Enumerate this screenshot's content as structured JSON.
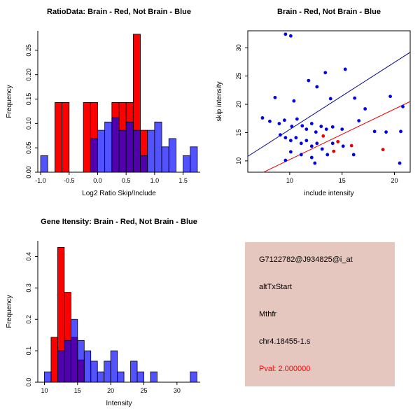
{
  "chart_data": [
    {
      "type": "bar",
      "title": "RatioData: Brain - Red, Not Brain - Blue",
      "xlabel": "Log2 Ratio Skip/Include",
      "ylabel": "Frequency",
      "xlim": [
        -1.05,
        1.8
      ],
      "ylim": [
        0,
        0.29
      ],
      "xticks": [
        {
          "v": -1.0,
          "label": "-1.0"
        },
        {
          "v": -0.5,
          "label": "-0.5"
        },
        {
          "v": 0.0,
          "label": "0.0"
        },
        {
          "v": 0.5,
          "label": "0.5"
        },
        {
          "v": 1.0,
          "label": "1.0"
        },
        {
          "v": 1.5,
          "label": "1.5"
        }
      ],
      "yticks": [
        {
          "v": 0.0,
          "label": "0.00"
        },
        {
          "v": 0.05,
          "label": "0.05"
        },
        {
          "v": 0.1,
          "label": "0.10"
        },
        {
          "v": 0.15,
          "label": "0.15"
        },
        {
          "v": 0.2,
          "label": "0.20"
        },
        {
          "v": 0.25,
          "label": "0.25"
        }
      ],
      "bin_width": 0.125,
      "series": [
        {
          "name": "Brain",
          "color": "#FF0000",
          "bins": [
            [
              -0.75,
              0.143
            ],
            [
              -0.625,
              0.143
            ],
            [
              -0.25,
              0.143
            ],
            [
              -0.125,
              0.143
            ],
            [
              0.25,
              0.143
            ],
            [
              0.375,
              0.143
            ],
            [
              0.5,
              0.143
            ],
            [
              0.625,
              0.283
            ],
            [
              0.75,
              0.086
            ]
          ]
        },
        {
          "name": "Not Brain",
          "color": "#0000FF",
          "bins": [
            [
              -1.0,
              0.034
            ],
            [
              -0.125,
              0.069
            ],
            [
              0.0,
              0.086
            ],
            [
              0.125,
              0.103
            ],
            [
              0.25,
              0.112
            ],
            [
              0.375,
              0.086
            ],
            [
              0.5,
              0.103
            ],
            [
              0.625,
              0.086
            ],
            [
              0.75,
              0.034
            ],
            [
              0.875,
              0.086
            ],
            [
              1.0,
              0.103
            ],
            [
              1.125,
              0.052
            ],
            [
              1.25,
              0.069
            ],
            [
              1.5,
              0.034
            ],
            [
              1.625,
              0.052
            ]
          ]
        }
      ]
    },
    {
      "type": "scatter",
      "title": "Brain - Red, Not Brain - Blue",
      "xlabel": "include intensity",
      "ylabel": "skip intensity",
      "xlim": [
        6,
        21.5
      ],
      "ylim": [
        8,
        33
      ],
      "xticks": [
        {
          "v": 10,
          "label": "10"
        },
        {
          "v": 15,
          "label": "15"
        },
        {
          "v": 20,
          "label": "20"
        }
      ],
      "yticks": [
        {
          "v": 10,
          "label": "10"
        },
        {
          "v": 15,
          "label": "15"
        },
        {
          "v": 20,
          "label": "20"
        },
        {
          "v": 25,
          "label": "25"
        },
        {
          "v": 30,
          "label": "30"
        }
      ],
      "series": [
        {
          "name": "Not Brain",
          "color": "#0000EE",
          "points": [
            [
              9.6,
              32.4
            ],
            [
              10.1,
              32.1
            ],
            [
              13.4,
              25.6
            ],
            [
              15.3,
              26.2
            ],
            [
              11.8,
              24.2
            ],
            [
              12.6,
              23.1
            ],
            [
              8.6,
              21.2
            ],
            [
              10.4,
              20.6
            ],
            [
              13.9,
              21.0
            ],
            [
              16.2,
              21.1
            ],
            [
              19.6,
              21.4
            ],
            [
              20.8,
              19.6
            ],
            [
              17.2,
              19.2
            ],
            [
              7.4,
              17.6
            ],
            [
              8.1,
              17.0
            ],
            [
              9.0,
              16.6
            ],
            [
              9.5,
              17.2
            ],
            [
              10.2,
              16.1
            ],
            [
              10.7,
              17.4
            ],
            [
              11.2,
              16.2
            ],
            [
              11.6,
              15.6
            ],
            [
              12.1,
              16.6
            ],
            [
              12.5,
              15.1
            ],
            [
              13.0,
              16.1
            ],
            [
              13.5,
              15.6
            ],
            [
              14.1,
              16.0
            ],
            [
              15.0,
              15.6
            ],
            [
              16.6,
              17.1
            ],
            [
              18.1,
              15.2
            ],
            [
              19.2,
              15.1
            ],
            [
              20.6,
              15.2
            ],
            [
              9.1,
              14.6
            ],
            [
              9.6,
              14.1
            ],
            [
              10.1,
              13.6
            ],
            [
              10.6,
              14.1
            ],
            [
              11.1,
              13.1
            ],
            [
              11.6,
              13.6
            ],
            [
              12.1,
              12.6
            ],
            [
              12.6,
              13.1
            ],
            [
              13.1,
              12.1
            ],
            [
              14.1,
              13.1
            ],
            [
              15.1,
              12.6
            ],
            [
              10.1,
              11.6
            ],
            [
              11.1,
              11.1
            ],
            [
              12.1,
              10.6
            ],
            [
              13.6,
              11.1
            ],
            [
              16.1,
              11.1
            ],
            [
              20.5,
              9.6
            ],
            [
              9.6,
              10.1
            ],
            [
              12.4,
              9.6
            ]
          ]
        },
        {
          "name": "Brain",
          "color": "#EE0000",
          "points": [
            [
              13.2,
              14.4
            ],
            [
              14.6,
              13.4
            ],
            [
              15.9,
              12.7
            ],
            [
              14.2,
              11.7
            ],
            [
              18.9,
              12.0
            ]
          ]
        }
      ],
      "lines": [
        {
          "color": "#000090",
          "x1": 6,
          "y1": 10.8,
          "x2": 21.5,
          "y2": 29.2
        },
        {
          "color": "#EE0000",
          "x1": 7.5,
          "y1": 8,
          "x2": 21.5,
          "y2": 20.5
        }
      ]
    },
    {
      "type": "bar",
      "title": "Gene Itensity: Brain - Red, Not Brain - Blue",
      "xlabel": "Intensity",
      "ylabel": "Frequency",
      "xlim": [
        9,
        33.5
      ],
      "ylim": [
        0,
        0.45
      ],
      "xticks": [
        {
          "v": 10,
          "label": "10"
        },
        {
          "v": 15,
          "label": "15"
        },
        {
          "v": 20,
          "label": "20"
        },
        {
          "v": 25,
          "label": "25"
        },
        {
          "v": 30,
          "label": "30"
        }
      ],
      "yticks": [
        {
          "v": 0.0,
          "label": "0.0"
        },
        {
          "v": 0.1,
          "label": "0.1"
        },
        {
          "v": 0.2,
          "label": "0.2"
        },
        {
          "v": 0.3,
          "label": "0.3"
        },
        {
          "v": 0.4,
          "label": "0.4"
        }
      ],
      "bin_width": 1,
      "series": [
        {
          "name": "Brain",
          "color": "#FF0000",
          "bins": [
            [
              11,
              0.143
            ],
            [
              12,
              0.429
            ],
            [
              13,
              0.286
            ],
            [
              14,
              0.143
            ],
            [
              15,
              0.071
            ]
          ]
        },
        {
          "name": "Not Brain",
          "color": "#0000FF",
          "bins": [
            [
              10,
              0.033
            ],
            [
              12,
              0.1
            ],
            [
              13,
              0.133
            ],
            [
              14,
              0.2
            ],
            [
              15,
              0.133
            ],
            [
              16,
              0.1
            ],
            [
              17,
              0.067
            ],
            [
              18,
              0.033
            ],
            [
              19,
              0.067
            ],
            [
              20,
              0.1
            ],
            [
              21,
              0.033
            ],
            [
              23,
              0.067
            ],
            [
              24,
              0.033
            ],
            [
              26,
              0.033
            ],
            [
              32,
              0.033
            ]
          ]
        }
      ]
    }
  ],
  "info_box": {
    "background": "#E5C7BF",
    "lines": [
      {
        "text": "G7122782@J934825@i_at",
        "color": "#000000"
      },
      {
        "text": "altTxStart",
        "color": "#000000"
      },
      {
        "text": "Mthfr",
        "color": "#000000"
      },
      {
        "text": "chr4.18455-1.s",
        "color": "#000000"
      },
      {
        "text": "Pval: 2.000000",
        "color": "#FF0000"
      }
    ]
  }
}
